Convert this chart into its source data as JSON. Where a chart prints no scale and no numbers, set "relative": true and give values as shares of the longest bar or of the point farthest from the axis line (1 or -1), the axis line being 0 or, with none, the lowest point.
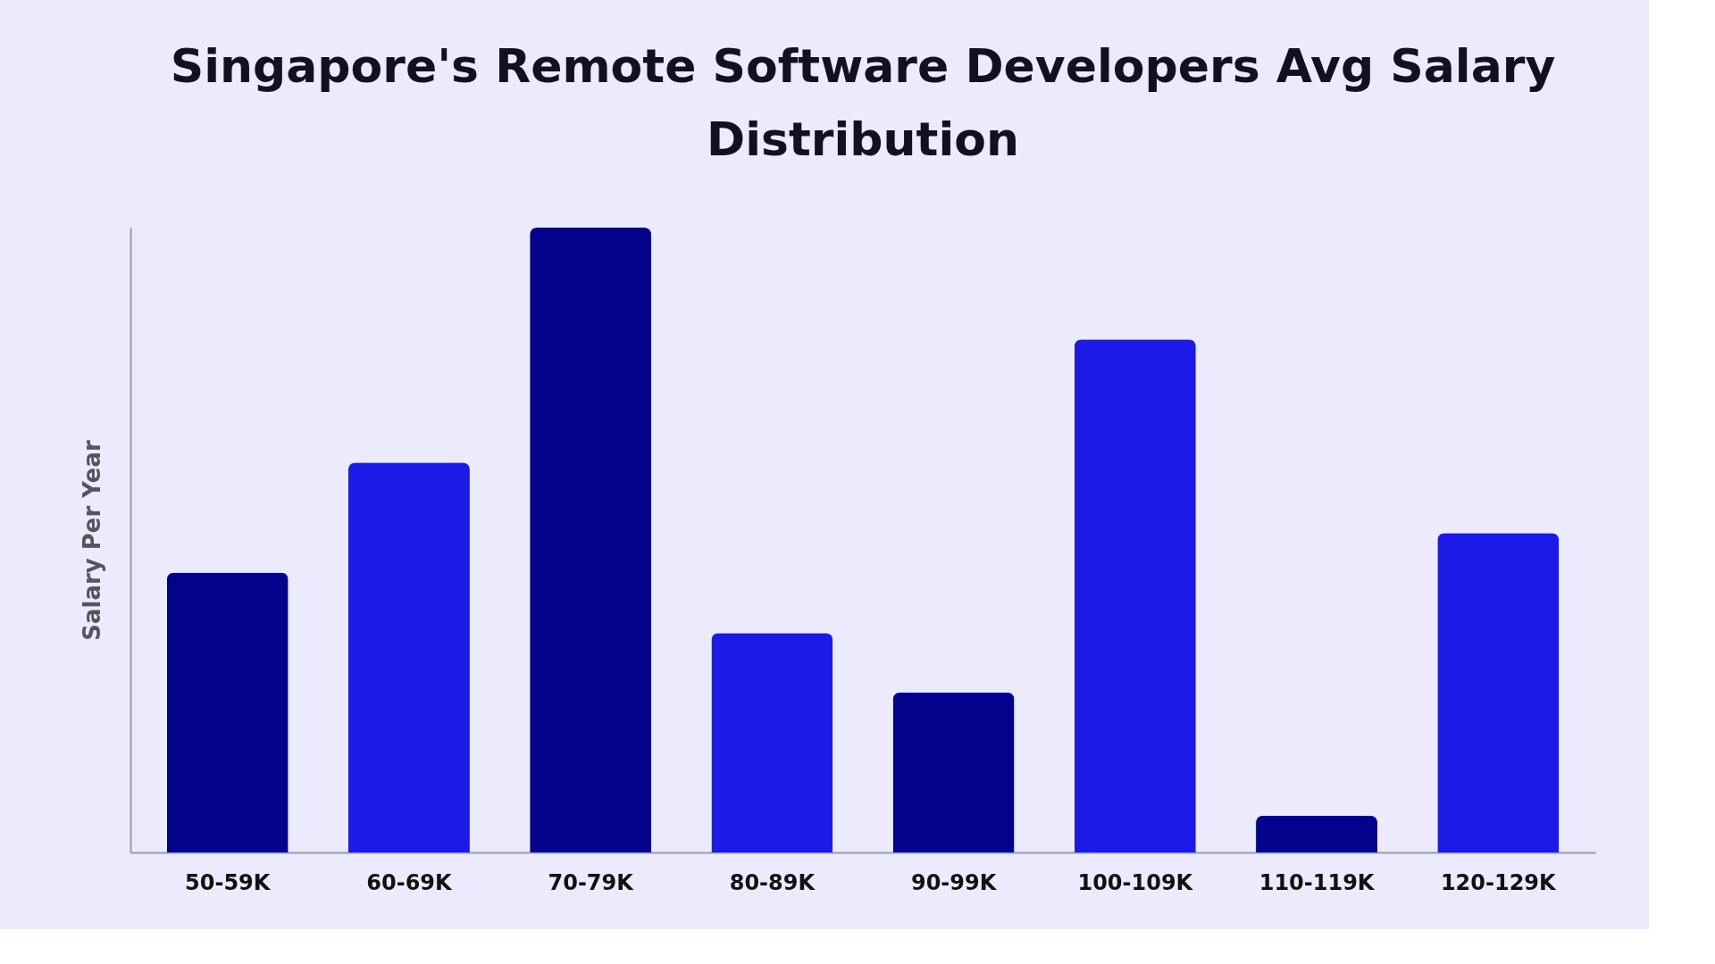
{
  "chart_data": {
    "type": "bar",
    "title": "Singapore's Remote Software Developers Avg Salary Distribution",
    "ylabel": "Salary Per Year",
    "relative": true,
    "categories": [
      "50-59K",
      "60-69K",
      "70-79K",
      "80-89K",
      "90-99K",
      "100-109K",
      "110-119K",
      "120-129K"
    ],
    "values": [
      0.448,
      0.624,
      1,
      0.351,
      0.256,
      0.821,
      0.059,
      0.511
    ],
    "colors": [
      "#02028c",
      "#1c1ae6",
      "#02028c",
      "#1c1ae6",
      "#02028c",
      "#1c1ae6",
      "#02028c",
      "#1c1ae6"
    ],
    "grid": false
  }
}
